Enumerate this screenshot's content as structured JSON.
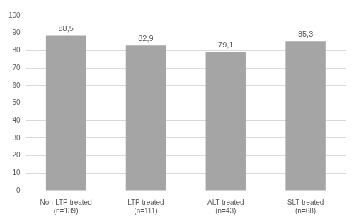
{
  "chart_data": {
    "type": "bar",
    "categories": [
      "Non-LTP treated\n(n=139)",
      "LTP treated\n(n=111)",
      "ALT treated\n(n=43)",
      "SLT treated\n(n=68)"
    ],
    "values": [
      88.5,
      82.9,
      79.1,
      85.3
    ],
    "value_labels": [
      "88,5",
      "82,9",
      "79,1",
      "85,3"
    ],
    "color": "#a5a5a5",
    "ylim": [
      0,
      100
    ],
    "yticks": [
      0,
      10,
      20,
      30,
      40,
      50,
      60,
      70,
      80,
      90,
      100
    ],
    "grid": true,
    "data_labels": true
  }
}
